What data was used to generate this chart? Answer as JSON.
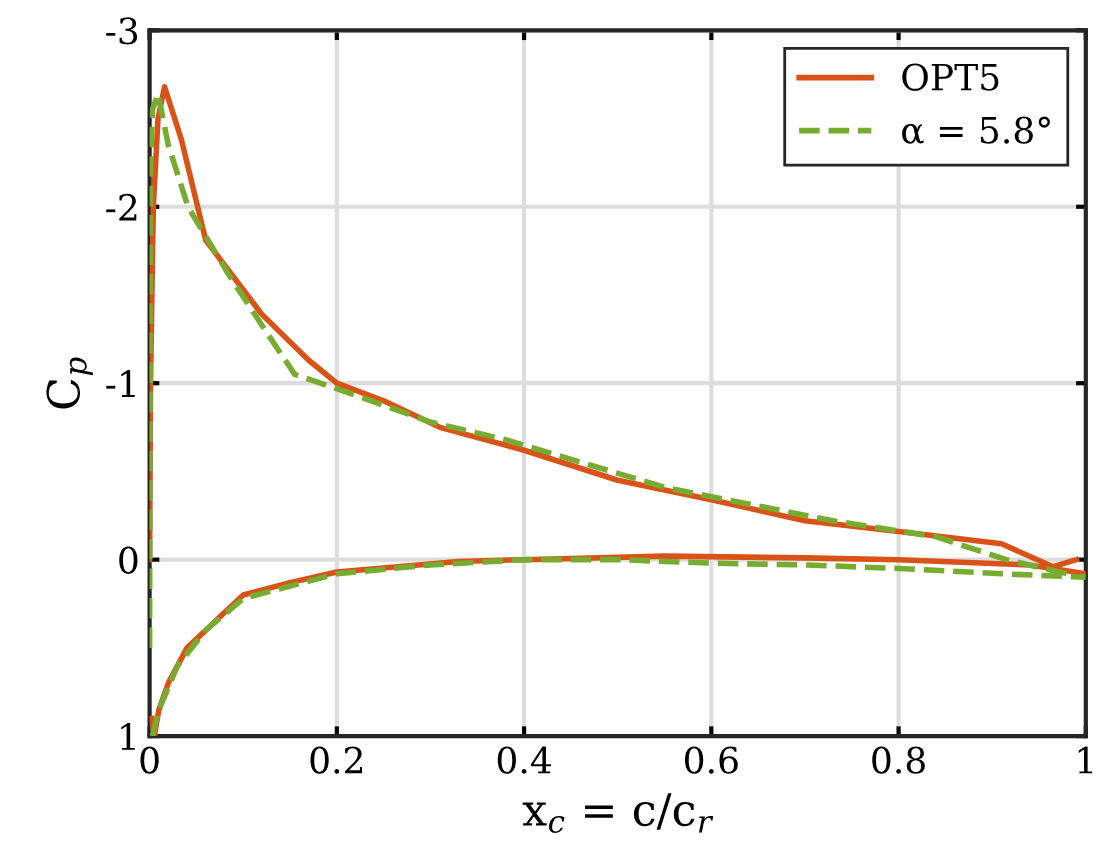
{
  "chart_data": {
    "type": "line",
    "xlabel": "x$_{c}$ = c/c$_{r}$",
    "ylabel": "C$_{p}$",
    "xlim": [
      0,
      1
    ],
    "ylim": [
      1,
      -3
    ],
    "xticks": [
      0,
      0.2,
      0.4,
      0.6,
      0.8,
      1
    ],
    "yticks": [
      -3,
      -2,
      -1,
      0,
      1
    ],
    "grid": true,
    "legend": "top right",
    "marker": "none",
    "series": [
      {
        "name": "OPT5",
        "color": "#d95319",
        "line_style": "solid",
        "x": [
          0.0,
          0.001,
          0.004,
          0.009,
          0.016,
          0.034,
          0.06,
          0.12,
          0.17,
          0.2,
          0.25,
          0.31,
          0.4,
          0.5,
          0.6,
          0.7,
          0.8,
          0.91,
          0.965,
          0.99
        ],
        "values": [
          0.0,
          -1.0,
          -2.0,
          -2.5,
          -2.68,
          -2.38,
          -1.81,
          -1.39,
          -1.13,
          -1.0,
          -0.9,
          -0.75,
          -0.62,
          -0.45,
          -0.34,
          -0.22,
          -0.16,
          -0.09,
          0.04,
          0.0
        ]
      },
      {
        "color": "#d95319",
        "line_style": "solid",
        "x": [
          0.002,
          0.005,
          0.01,
          0.02,
          0.04,
          0.06,
          0.08,
          0.1,
          0.15,
          0.2,
          0.33,
          0.4,
          0.55,
          0.7,
          0.8,
          0.94,
          1.0
        ],
        "values": [
          0.9,
          1.0,
          0.85,
          0.7,
          0.5,
          0.4,
          0.3,
          0.2,
          0.13,
          0.07,
          0.01,
          0.0,
          -0.02,
          -0.01,
          0.0,
          0.03,
          0.08
        ]
      },
      {
        "name": "α = 5.8°",
        "color": "#77ac30",
        "line_style": "dashed",
        "x": [
          0.0,
          0.001,
          0.003,
          0.009,
          0.02,
          0.041,
          0.084,
          0.126,
          0.155,
          0.205,
          0.3,
          0.38,
          0.55,
          0.73,
          0.84,
          0.915,
          0.98
        ],
        "values": [
          0.5,
          -2.2,
          -2.55,
          -2.64,
          -2.35,
          -2.0,
          -1.62,
          -1.28,
          -1.05,
          -0.96,
          -0.78,
          -0.68,
          -0.41,
          -0.22,
          -0.13,
          0.0,
          0.08
        ]
      },
      {
        "color": "#77ac30",
        "line_style": "dashed",
        "x": [
          0.003,
          0.01,
          0.03,
          0.06,
          0.1,
          0.2,
          0.3,
          0.4,
          0.5,
          0.6,
          0.7,
          0.8,
          0.91,
          1.0
        ],
        "values": [
          1.0,
          0.85,
          0.6,
          0.4,
          0.22,
          0.08,
          0.03,
          0.0,
          0.0,
          0.02,
          0.03,
          0.05,
          0.08,
          0.1
        ]
      }
    ]
  }
}
